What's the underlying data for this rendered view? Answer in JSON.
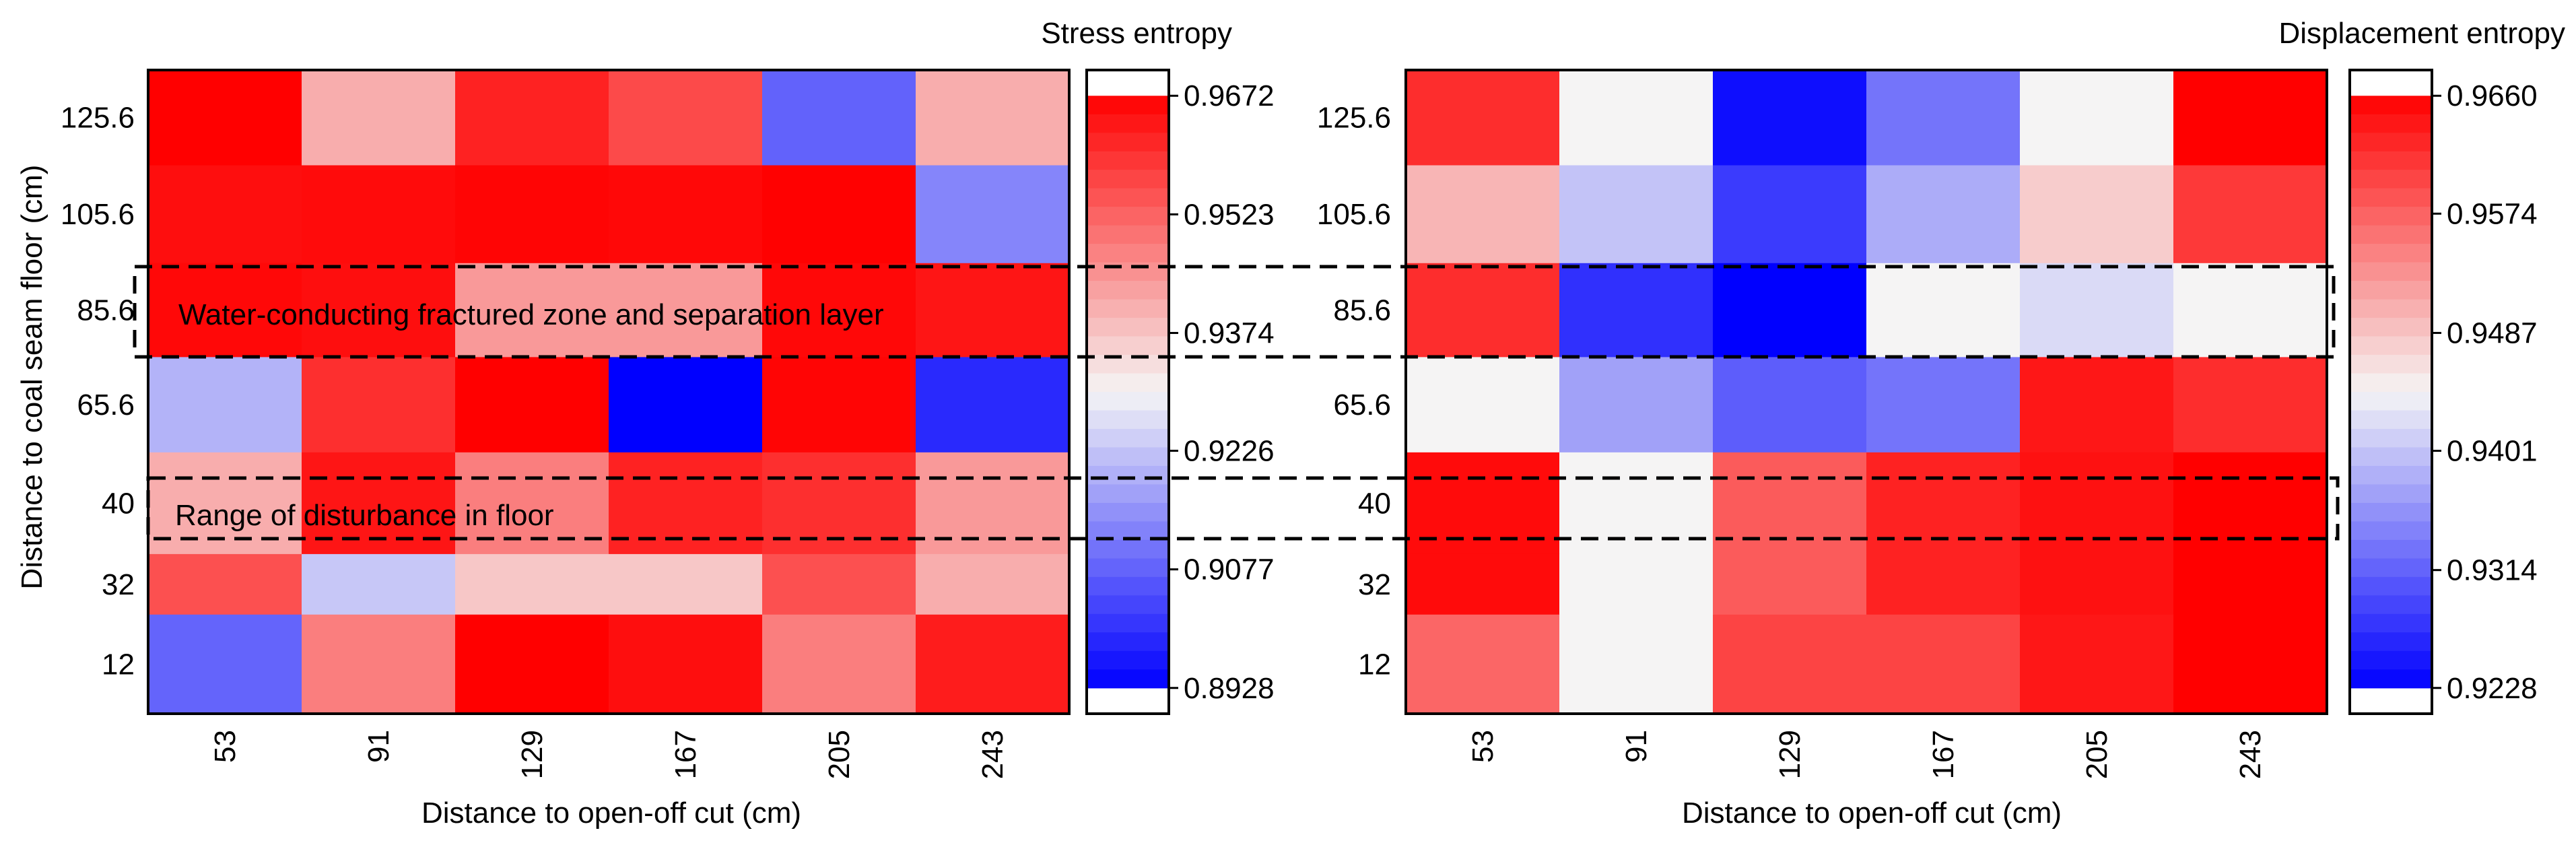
{
  "chart_data": [
    {
      "type": "heatmap",
      "title": "Stress entropy",
      "xlabel": "Distance to open-off cut (cm)",
      "ylabel": "Distance to coal seam floor (cm)",
      "x_categories": [
        "53",
        "91",
        "129",
        "167",
        "205",
        "243"
      ],
      "y_categories": [
        "125.6",
        "105.6",
        "85.6",
        "65.6",
        "40",
        "32",
        "12"
      ],
      "values": [
        [
          0.9672,
          0.941,
          0.962,
          0.956,
          0.9077,
          0.941
        ],
        [
          0.965,
          0.9655,
          0.9665,
          0.966,
          0.967,
          0.913
        ],
        [
          0.966,
          0.965,
          0.944,
          0.944,
          0.966,
          0.964
        ],
        [
          0.92,
          0.96,
          0.9672,
          0.8928,
          0.9665,
          0.899
        ],
        [
          0.941,
          0.964,
          0.948,
          0.962,
          0.96,
          0.944
        ],
        [
          0.955,
          0.923,
          0.937,
          0.937,
          0.955,
          0.941
        ],
        [
          0.908,
          0.948,
          0.9672,
          0.965,
          0.948,
          0.963
        ]
      ],
      "colorbar": {
        "min": 0.8928,
        "max": 0.9672,
        "ticks": [
          "0.9672",
          "0.9523",
          "0.9374",
          "0.9226",
          "0.9077",
          "0.8928"
        ],
        "tick_values": [
          0.9672,
          0.9523,
          0.9374,
          0.9226,
          0.9077,
          0.8928
        ]
      },
      "annotations": [
        "Water-conducting fractured zone and separation layer",
        "Range of disturbance in floor"
      ]
    },
    {
      "type": "heatmap",
      "title": "Displacement entropy",
      "xlabel": "Distance to open-off cut (cm)",
      "ylabel": "",
      "x_categories": [
        "53",
        "91",
        "129",
        "167",
        "205",
        "243"
      ],
      "y_categories": [
        "125.6",
        "105.6",
        "85.6",
        "65.6",
        "40",
        "32",
        "12"
      ],
      "values": [
        [
          0.962,
          0.9445,
          0.924,
          0.933,
          0.9445,
          0.966
        ],
        [
          0.95,
          0.94,
          0.928,
          0.938,
          0.948,
          0.961
        ],
        [
          0.962,
          0.927,
          0.9228,
          0.9445,
          0.942,
          0.9445
        ],
        [
          0.9445,
          0.937,
          0.931,
          0.933,
          0.964,
          0.962
        ],
        [
          0.965,
          0.9445,
          0.958,
          0.963,
          0.9645,
          0.966
        ],
        [
          0.965,
          0.9445,
          0.958,
          0.963,
          0.9645,
          0.966
        ],
        [
          0.957,
          0.9445,
          0.96,
          0.96,
          0.964,
          0.966
        ]
      ],
      "colorbar": {
        "min": 0.9228,
        "max": 0.966,
        "ticks": [
          "0.9660",
          "0.9574",
          "0.9487",
          "0.9401",
          "0.9314",
          "0.9228"
        ],
        "tick_values": [
          0.966,
          0.9574,
          0.9487,
          0.9401,
          0.9314,
          0.9228
        ]
      }
    }
  ],
  "colors": {
    "low": "#0000ff",
    "mid": "#f5f5f5",
    "high": "#ff0000",
    "border": "#000000"
  }
}
